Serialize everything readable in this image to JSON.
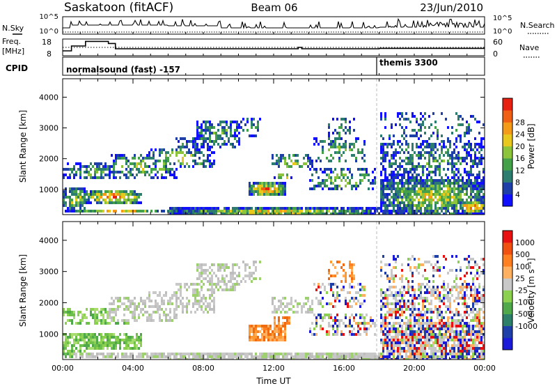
{
  "header": {
    "station": "Saskatoon (fitACF)",
    "beam": "Beam 06",
    "date": "23/Jun/2010"
  },
  "top_panels": {
    "nsky_label": "N.Sky",
    "nsky_ticks": [
      "10^5",
      "10^0"
    ],
    "nsearch_label": "N.Search",
    "nsearch_ticks": [
      "10^5",
      "10^0"
    ],
    "freq_label_1": "Freq.",
    "freq_label_2": "[MHz]",
    "freq_ticks": [
      "18",
      "8"
    ],
    "nave_label": "Nave",
    "nave_ticks": [
      "60",
      "0"
    ],
    "cpid_label": "CPID",
    "cpid_modes": [
      {
        "name": "normalsound (fast) -157",
        "start": "00:00",
        "end": "18:00"
      },
      {
        "name": "themis 3300",
        "start": "18:00",
        "end": "24:00"
      }
    ]
  },
  "chart_data": [
    {
      "type": "heatmap",
      "ylabel": "Slant Range [km]",
      "yticks": [
        1000,
        2000,
        3000,
        4000
      ],
      "ylim": [
        180,
        4600
      ],
      "xlim_hours": [
        0,
        24
      ],
      "xticks": [
        "00:00",
        "04:00",
        "08:00",
        "12:00",
        "16:00",
        "20:00",
        "00:00"
      ],
      "colorbar": {
        "label": "Power [dB]",
        "ticks": [
          "4",
          "8",
          "12",
          "16",
          "20",
          "24",
          "28"
        ],
        "colors": [
          "#1010ff",
          "#1f3fa8",
          "#2c7c70",
          "#45a04a",
          "#8cc43c",
          "#e8c81c",
          "#f39a18",
          "#f06014",
          "#e82010"
        ]
      }
    },
    {
      "type": "heatmap",
      "ylabel": "Slant Range [km]",
      "yticks": [
        1000,
        2000,
        3000,
        4000
      ],
      "ylim": [
        180,
        4600
      ],
      "xlim_hours": [
        0,
        24
      ],
      "xticks": [
        "00:00",
        "04:00",
        "08:00",
        "12:00",
        "16:00",
        "20:00",
        "00:00"
      ],
      "xlabel": "Time UT",
      "colorbar": {
        "label": "Velocity [m s⁻¹]",
        "ticks": [
          "1000",
          "500",
          "100",
          "25",
          "-25",
          "-100",
          "-500",
          "-1000"
        ],
        "colors": [
          "#1a1ad8",
          "#1f3fa8",
          "#2e7f6a",
          "#4fa84a",
          "#8cd050",
          "#c8c8c8",
          "#ffb060",
          "#ff8020",
          "#f05010",
          "#e81010"
        ]
      }
    }
  ]
}
